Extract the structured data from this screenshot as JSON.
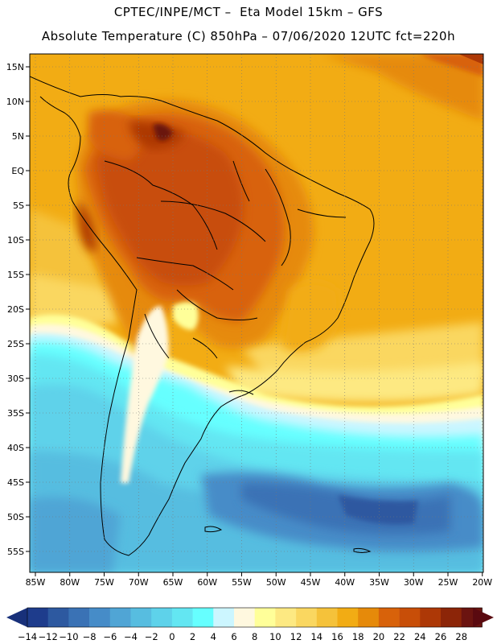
{
  "header": {
    "title_line1": "CPTEC/INPE/MCT –  Eta Model 15km – GFS",
    "title_line2": "Absolute Temperature (C) 850hPa – 07/06/2020 12UTC fct=220h"
  },
  "axes": {
    "lon_labels": [
      "85W",
      "80W",
      "75W",
      "70W",
      "65W",
      "60W",
      "55W",
      "50W",
      "45W",
      "40W",
      "35W",
      "30W",
      "25W",
      "20W"
    ],
    "lat_labels": [
      "15N",
      "10N",
      "5N",
      "EQ",
      "5S",
      "10S",
      "15S",
      "20S",
      "25S",
      "30S",
      "35S",
      "40S",
      "45S",
      "50S",
      "55S"
    ]
  },
  "colorbar": {
    "labels": [
      "-14",
      "-12",
      "-10",
      "-8",
      "-6",
      "-4",
      "-2",
      "0",
      "2",
      "4",
      "6",
      "8",
      "10",
      "12",
      "14",
      "16",
      "18",
      "20",
      "22",
      "24",
      "26",
      "28"
    ],
    "colors": [
      "#1e3c8c",
      "#2d59a0",
      "#3a72b5",
      "#468cc8",
      "#50a5d5",
      "#57bde0",
      "#5ed2ea",
      "#63e6f2",
      "#66ffff",
      "#ccf6ff",
      "#fff8df",
      "#ffff99",
      "#fde982",
      "#fad760",
      "#f5c23a",
      "#f2ac14",
      "#e68a0a",
      "#d8620a",
      "#c84e08",
      "#ad3806",
      "#8c2508",
      "#6b1410"
    ],
    "under_color": "#18307a",
    "over_color": "#5a0a10"
  }
}
